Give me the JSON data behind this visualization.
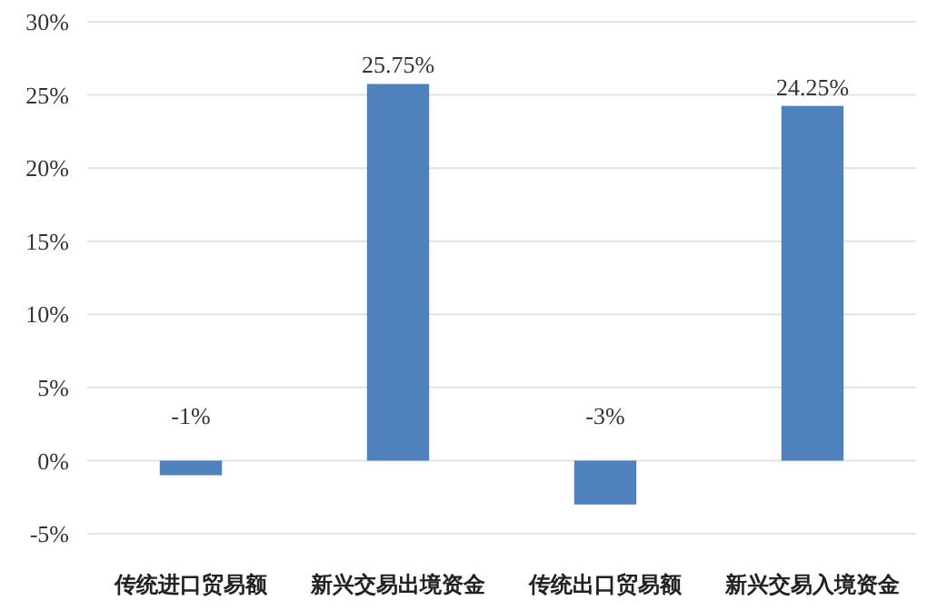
{
  "chart_data": {
    "type": "bar",
    "categories": [
      "传统进口贸易额",
      "新兴交易出境资金",
      "传统出口贸易额",
      "新兴交易入境资金"
    ],
    "values": [
      -1,
      25.75,
      -3,
      24.25
    ],
    "color": "#4f81bd",
    "value_labels": [
      "-1%",
      "25.75%",
      "-3%",
      "24.25%"
    ],
    "ylim": [
      -5,
      30
    ],
    "yticks": [
      {
        "value": -5,
        "label": "-5%"
      },
      {
        "value": 0,
        "label": "0%"
      },
      {
        "value": 5,
        "label": "5%"
      },
      {
        "value": 10,
        "label": "10%"
      },
      {
        "value": 15,
        "label": "15%"
      },
      {
        "value": 20,
        "label": "20%"
      },
      {
        "value": 25,
        "label": "25%"
      },
      {
        "value": 30,
        "label": "30%"
      }
    ],
    "grid": "y"
  }
}
